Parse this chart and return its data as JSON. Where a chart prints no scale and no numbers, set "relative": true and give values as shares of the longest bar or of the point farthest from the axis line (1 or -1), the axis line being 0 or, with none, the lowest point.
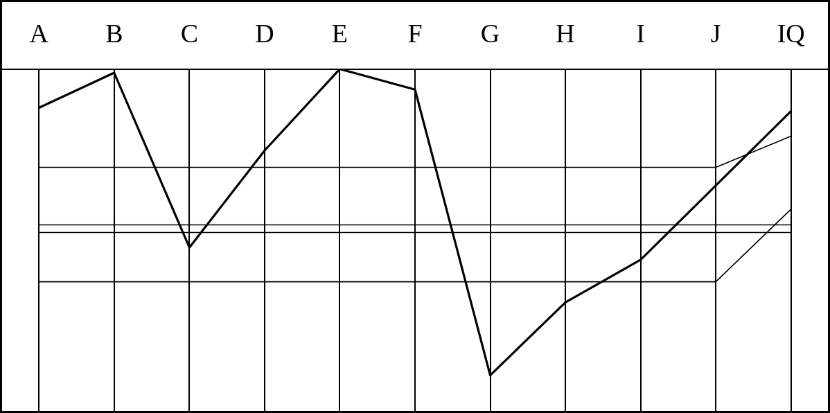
{
  "chart_data": {
    "type": "line",
    "relative": true,
    "categories": [
      "A",
      "B",
      "C",
      "D",
      "E",
      "F",
      "G",
      "H",
      "I",
      "J",
      "IQ"
    ],
    "series": [
      {
        "color": "#000000",
        "values": [
          0.887,
          0.989,
          0.479,
          0.762,
          1.0,
          0.94,
          0.106,
          0.319,
          0.443,
          0.66,
          0.877
        ]
      },
      {
        "color": "#000000",
        "values": [
          0.713,
          0.713,
          0.713,
          0.713,
          0.713,
          0.713,
          0.713,
          0.713,
          0.713,
          0.713,
          0.804
        ]
      },
      {
        "color": "#000000",
        "values": [
          0.545,
          0.545,
          0.545,
          0.545,
          0.545,
          0.545,
          0.545,
          0.545,
          0.545,
          0.545,
          0.545
        ]
      },
      {
        "color": "#000000",
        "values": [
          0.523,
          0.523,
          0.523,
          0.523,
          0.523,
          0.523,
          0.523,
          0.523,
          0.523,
          0.523,
          0.523
        ]
      },
      {
        "color": "#000000",
        "values": [
          0.379,
          0.379,
          0.379,
          0.379,
          0.379,
          0.379,
          0.379,
          0.379,
          0.379,
          0.379,
          0.591
        ]
      }
    ],
    "grid": "x",
    "marker": "none",
    "line_style": "solid",
    "legend": false,
    "tick_labels": "x"
  }
}
